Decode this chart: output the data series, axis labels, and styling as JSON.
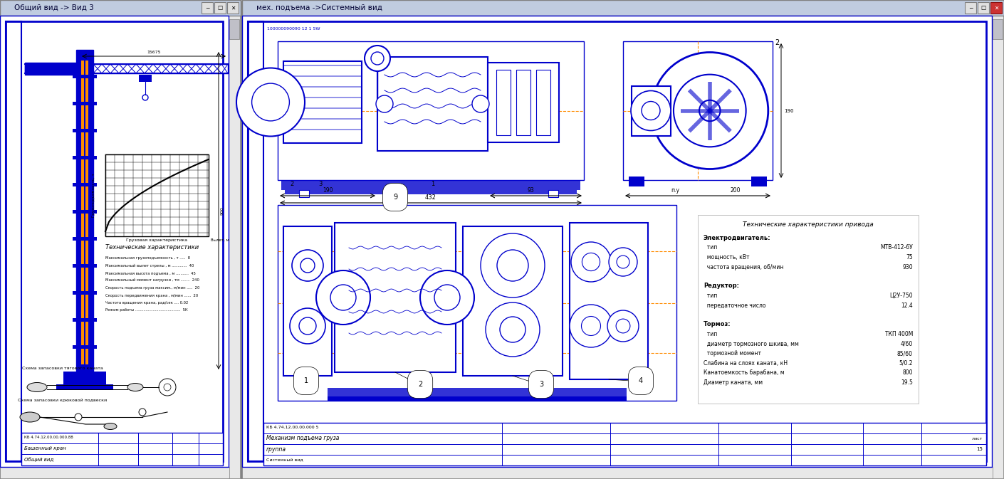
{
  "fig_width": 14.1,
  "fig_height": 6.73,
  "bg_color": "#c0c0c0",
  "blue": "#0000cc",
  "orange": "#ff8c00",
  "titlebar_bg": "#c0cce0",
  "window_bg": "#d4d0c8",
  "left_window_title": "Общий вид -> Вид 3",
  "right_window_title": "мех. подъема ->Системный вид",
  "left_specs": [
    "Максимальная грузоподъемность , т .....  8",
    "Максимальный вылет стрелы , м .............  40",
    "Максимальная высота подъема , м ...........  45",
    "Максимальный момент нагрузки , тм ........  240",
    "Скорость подъема груза максим., м/мин .....  20",
    "Скорость передвижения крана , м/мин ......  20",
    "Частота вращения крана, рад/сек .... 0.02",
    "Режим работы .......................................  5К"
  ],
  "right_specs": [
    [
      "Электродвигатель:",
      ""
    ],
    [
      "  тип",
      "МТВ-412-6У"
    ],
    [
      "  мощность, кВт",
      "75"
    ],
    [
      "  частота вращения, об/мин",
      "930"
    ],
    [
      "",
      ""
    ],
    [
      "Редуктор:",
      ""
    ],
    [
      "  тип",
      "Ц2У-750"
    ],
    [
      "  передаточное число",
      "12.4"
    ],
    [
      "",
      ""
    ],
    [
      "Тормоз:",
      ""
    ],
    [
      "  тип",
      "ТКП 400М"
    ],
    [
      "  диаметр тормозного шкива, мм",
      "4/60"
    ],
    [
      "  тормозной момент",
      "85/60"
    ],
    [
      "Слабина на слоях каната, кН",
      "5/0.2"
    ],
    [
      "Канатоемкость барабана, м",
      "800"
    ],
    [
      "Диаметр каната, мм",
      "19.5"
    ]
  ]
}
